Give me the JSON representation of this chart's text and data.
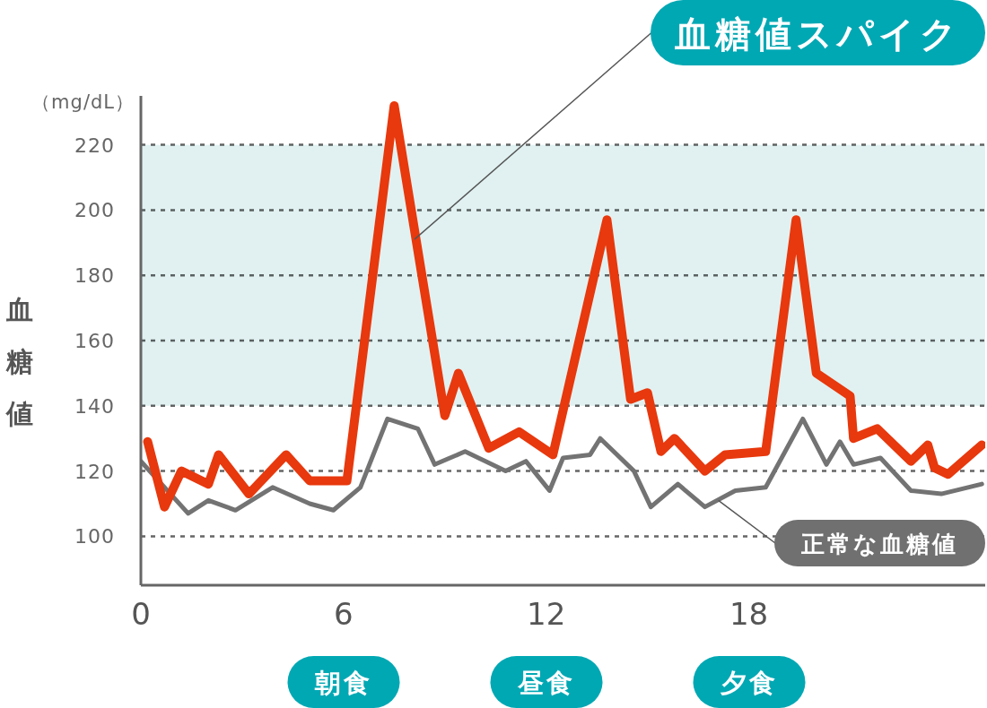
{
  "chart_data": {
    "type": "line",
    "ylabel": "血糖値",
    "annotations": [
      "（mg/dL）",
      {
        "text": "血糖値スパイク",
        "x": 8.1,
        "y": 191
      },
      {
        "text": "正常な血糖値",
        "x": 17.1,
        "y": 111
      },
      "朝食",
      "昼食",
      "夕食"
    ],
    "series": [
      {
        "color": "#737373",
        "x": [
          0,
          1.4,
          2.0,
          2.8,
          3.9,
          5.0,
          5.7,
          6.5,
          7.3,
          8.2,
          8.7,
          9.6,
          10.8,
          11.4,
          12.1,
          12.5,
          13.3,
          13.6,
          14.6,
          15.1,
          15.9,
          16.7,
          17.6,
          18.5,
          19.6,
          20.3,
          20.7,
          21.1,
          21.9,
          22.8,
          23.7,
          24.9
        ],
        "values": [
          123,
          107,
          111,
          108,
          115,
          110,
          108,
          115,
          136,
          133,
          122,
          126,
          120,
          123,
          114,
          124,
          125,
          130,
          120,
          109,
          116,
          109,
          114,
          115,
          136,
          122,
          129,
          122,
          124,
          114,
          113,
          116
        ]
      },
      {
        "color": "#e8380d",
        "x": [
          0.2,
          0.7,
          1.2,
          2.0,
          2.3,
          3.2,
          4.3,
          5.0,
          6.1,
          7.5,
          9.0,
          9.4,
          10.3,
          11.2,
          12.2,
          13.8,
          14.5,
          15.0,
          15.4,
          15.8,
          16.7,
          17.3,
          18.5,
          19.4,
          20.0,
          21.0,
          21.1,
          21.8,
          22.8,
          23.3,
          23.5,
          23.9,
          24.9
        ],
        "values": [
          129,
          109,
          120,
          116,
          125,
          113,
          125,
          117,
          117,
          232,
          137,
          150,
          127,
          132,
          125,
          197,
          142,
          144,
          126,
          130,
          120,
          125,
          126,
          197,
          150,
          143,
          130,
          133,
          123,
          128,
          121,
          119,
          128
        ]
      }
    ],
    "xlim": [
      0,
      25
    ],
    "xticks": [
      0,
      6,
      12,
      18
    ],
    "ylim": [
      85,
      235
    ],
    "yticks": [
      100,
      120,
      140,
      160,
      180,
      200,
      220
    ],
    "bands": [
      {
        "axis": "y",
        "from": 140,
        "to": 220,
        "color": "#e1f1f1"
      }
    ],
    "grid": "y"
  }
}
